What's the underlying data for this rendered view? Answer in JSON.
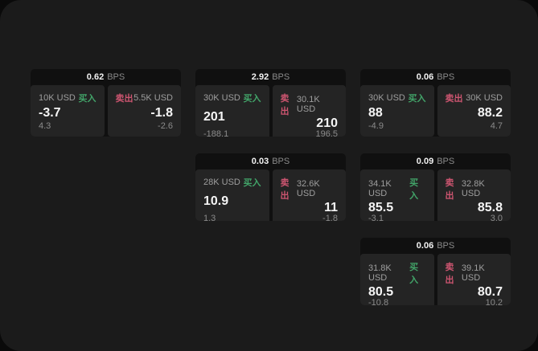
{
  "labels": {
    "buy": "买入",
    "sell": "卖出",
    "bps_unit": "BPS"
  },
  "colors": {
    "buy": "#42a469",
    "sell": "#cd5570",
    "panel_bg": "#1b1b1b",
    "card_header_bg": "#101010",
    "quote_panel_bg": "#242424"
  },
  "cards": [
    {
      "row": 1,
      "col": 1,
      "bps": "0.62",
      "buy": {
        "size": "10K USD",
        "value": "-3.7",
        "sub": "4.3"
      },
      "sell": {
        "size": "5.5K USD",
        "value": "-1.8",
        "sub": "-2.6"
      }
    },
    {
      "row": 1,
      "col": 2,
      "bps": "2.92",
      "buy": {
        "size": "30K USD",
        "value": "201",
        "sub": "-188.1"
      },
      "sell": {
        "size": "30.1K USD",
        "value": "210",
        "sub": "196.5"
      }
    },
    {
      "row": 1,
      "col": 3,
      "bps": "0.06",
      "buy": {
        "size": "30K USD",
        "value": "88",
        "sub": "-4.9"
      },
      "sell": {
        "size": "30K USD",
        "value": "88.2",
        "sub": "4.7"
      }
    },
    {
      "row": 2,
      "col": 2,
      "bps": "0.03",
      "buy": {
        "size": "28K USD",
        "value": "10.9",
        "sub": "1.3"
      },
      "sell": {
        "size": "32.6K USD",
        "value": "11",
        "sub": "-1.8"
      }
    },
    {
      "row": 2,
      "col": 3,
      "bps": "0.09",
      "buy": {
        "size": "34.1K USD",
        "value": "85.5",
        "sub": "-3.1"
      },
      "sell": {
        "size": "32.8K USD",
        "value": "85.8",
        "sub": "3.0"
      }
    },
    {
      "row": 3,
      "col": 3,
      "bps": "0.06",
      "buy": {
        "size": "31.8K USD",
        "value": "80.5",
        "sub": "-10.8"
      },
      "sell": {
        "size": "39.1K USD",
        "value": "80.7",
        "sub": "10.2"
      }
    }
  ]
}
